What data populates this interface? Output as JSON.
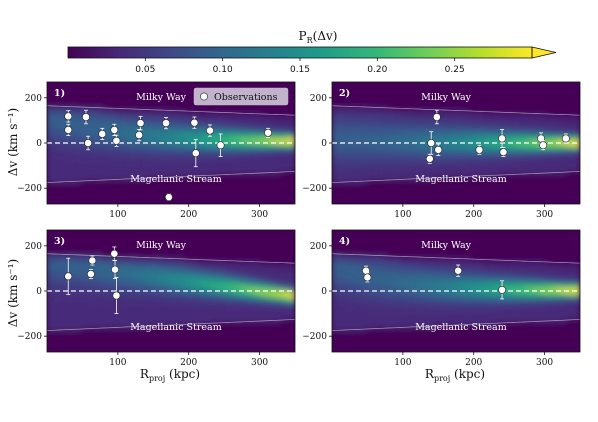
{
  "colorbar": {
    "label": "P_R(Δv)",
    "label_main": "P",
    "label_sub": "R",
    "label_rest": "(Δv)",
    "ticks": [
      "0.05",
      "0.10",
      "0.15",
      "0.20",
      "0.25"
    ],
    "tick_values": [
      0.05,
      0.1,
      0.15,
      0.2,
      0.25
    ],
    "range": [
      0.0,
      0.3
    ],
    "colormap": "viridis",
    "extend": "max"
  },
  "labels": {
    "milky_way": "Milky Way",
    "magellanic_stream": "Magellanic Stream",
    "legend_observations": "Observations",
    "ylabel": "Δv (km s⁻¹)",
    "xlabel_main": "R",
    "xlabel_sub": "proj",
    "xlabel_unit": "(kpc)"
  },
  "axes": {
    "xlim": [
      0,
      350
    ],
    "ylim": [
      -270,
      270
    ],
    "xticks": [
      100,
      200,
      300
    ],
    "yticks": [
      -200,
      0,
      200
    ],
    "xtick_labels": [
      "100",
      "200",
      "300"
    ],
    "ytick_labels": [
      "−200",
      "0",
      "200"
    ]
  },
  "colors": {
    "background_low": "#440154",
    "ridge_mid": "#21918c",
    "ridge_high": "#fde725",
    "zero_line": "#ffffff",
    "points": "#ffffff"
  },
  "chart_data": [
    {
      "type": "scatter",
      "panel_label": "1)",
      "show_legend": true,
      "series": [
        {
          "name": "Observations",
          "x": [
            30,
            30,
            55,
            58,
            78,
            95,
            98,
            130,
            132,
            168,
            172,
            208,
            210,
            230,
            245,
            312
          ],
          "y": [
            118,
            58,
            115,
            0,
            40,
            58,
            10,
            35,
            88,
            88,
            -240,
            90,
            -45,
            55,
            -10,
            45
          ],
          "yerr": [
            25,
            25,
            30,
            30,
            25,
            25,
            25,
            25,
            30,
            25,
            15,
            25,
            60,
            25,
            50,
            20
          ]
        }
      ]
    },
    {
      "type": "scatter",
      "panel_label": "2)",
      "show_legend": false,
      "series": [
        {
          "x": [
            138,
            140,
            148,
            150,
            208,
            240,
            242,
            295,
            298,
            330
          ],
          "y": [
            -70,
            0,
            115,
            -30,
            -30,
            20,
            -40,
            20,
            -10,
            20
          ],
          "yerr": [
            20,
            50,
            30,
            25,
            20,
            40,
            20,
            25,
            20,
            20
          ]
        }
      ]
    },
    {
      "type": "scatter",
      "panel_label": "3)",
      "show_legend": false,
      "series": [
        {
          "x": [
            30,
            62,
            64,
            95,
            96,
            98
          ],
          "y": [
            65,
            75,
            135,
            165,
            95,
            -20
          ],
          "yerr": [
            80,
            20,
            20,
            30,
            40,
            80
          ]
        }
      ]
    },
    {
      "type": "scatter",
      "panel_label": "4)",
      "show_legend": false,
      "series": [
        {
          "x": [
            48,
            50,
            178,
            240
          ],
          "y": [
            90,
            60,
            90,
            5
          ],
          "yerr": [
            20,
            20,
            25,
            40
          ]
        }
      ]
    }
  ]
}
